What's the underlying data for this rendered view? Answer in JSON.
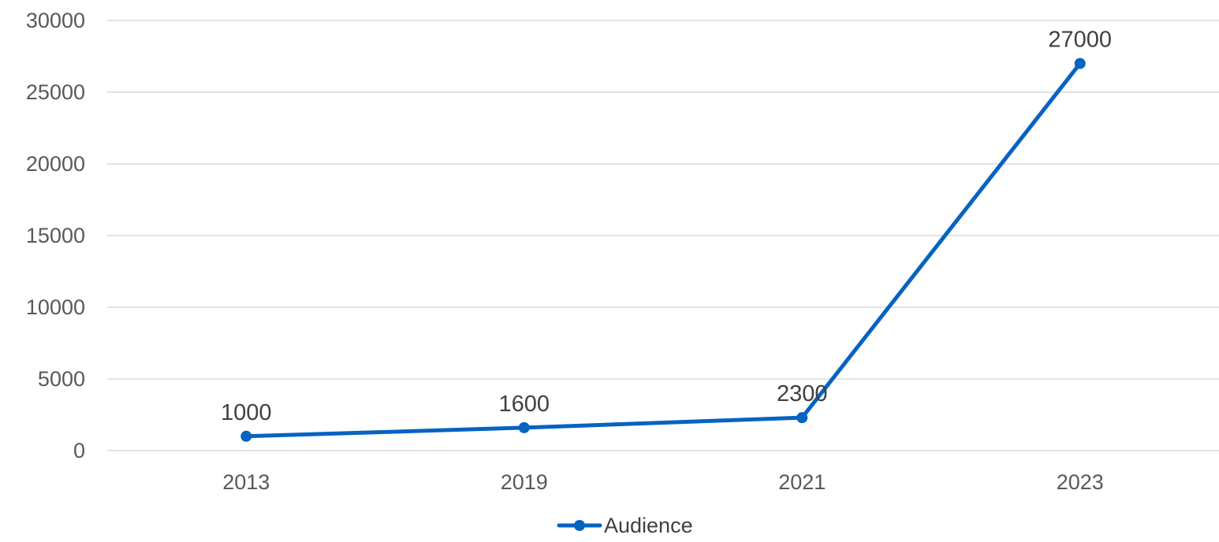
{
  "chart_data": {
    "type": "line",
    "title": "",
    "xlabel": "",
    "ylabel": "",
    "categories": [
      "2013",
      "2019",
      "2021",
      "2023"
    ],
    "series": [
      {
        "name": "Audience",
        "values": [
          1000,
          1600,
          2300,
          27000
        ],
        "color": "#0563c1",
        "marker": "circle",
        "data_labels": true
      }
    ],
    "ylim": [
      0,
      30000
    ],
    "y_ticks": [
      0,
      5000,
      10000,
      15000,
      20000,
      25000,
      30000
    ],
    "grid": true,
    "legend_position": "bottom"
  }
}
